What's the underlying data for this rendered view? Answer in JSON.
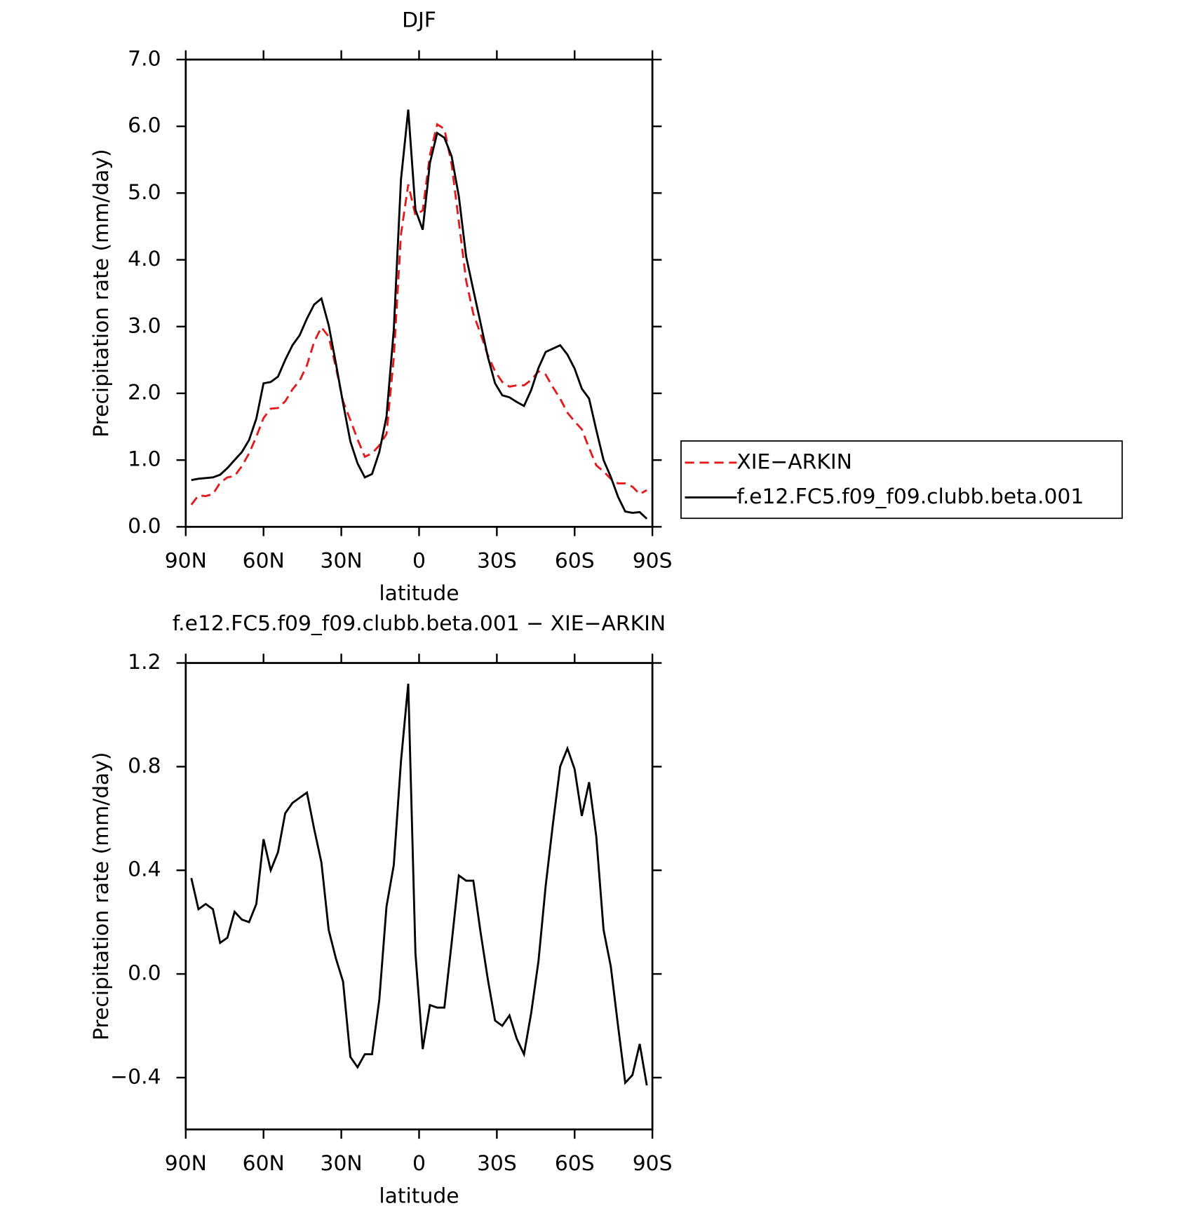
{
  "chart_data": [
    {
      "type": "line",
      "title": "DJF",
      "xlabel": "latitude",
      "ylabel": "Precipitation rate (mm/day)",
      "x": [
        87.86,
        85.1,
        82.31,
        79.53,
        76.74,
        73.95,
        71.16,
        68.37,
        65.58,
        62.79,
        60.0,
        57.21,
        54.42,
        51.63,
        48.84,
        46.05,
        43.26,
        40.47,
        37.67,
        34.88,
        32.09,
        29.3,
        26.51,
        23.72,
        20.93,
        18.14,
        15.35,
        12.56,
        9.77,
        6.98,
        4.19,
        1.4,
        -1.4,
        -4.19,
        -6.98,
        -9.77,
        -12.56,
        -15.35,
        -18.14,
        -20.93,
        -23.72,
        -26.51,
        -29.3,
        -32.09,
        -34.88,
        -37.67,
        -40.47,
        -43.26,
        -46.05,
        -48.84,
        -51.63,
        -54.42,
        -57.21,
        -60.0,
        -62.79,
        -65.58,
        -68.37,
        -71.16,
        -73.95,
        -76.74,
        -79.53,
        -82.31,
        -85.1,
        -87.86
      ],
      "xlim": [
        90,
        -90
      ],
      "xticks": [
        {
          "value": 90,
          "label": "90N"
        },
        {
          "value": 60,
          "label": "60N"
        },
        {
          "value": 30,
          "label": "30N"
        },
        0,
        {
          "value": -30,
          "label": "30S"
        },
        {
          "value": -60,
          "label": "60S"
        },
        {
          "value": -90,
          "label": "90S"
        }
      ],
      "ylim": [
        0,
        7
      ],
      "yticks": [
        {
          "value": 0,
          "label": "0.0"
        },
        {
          "value": 1,
          "label": "1.0"
        },
        {
          "value": 2,
          "label": "2.0"
        },
        {
          "value": 3,
          "label": "3.0"
        },
        {
          "value": 4,
          "label": "4.0"
        },
        {
          "value": 5,
          "label": "5.0"
        },
        {
          "value": 6,
          "label": "6.0"
        },
        {
          "value": 7,
          "label": "7.0"
        }
      ],
      "legend": "right",
      "series": [
        {
          "name": "XIE−ARKIN",
          "color": "#e41a1c",
          "dashed": true,
          "values": [
            0.33,
            0.47,
            0.46,
            0.49,
            0.66,
            0.74,
            0.76,
            0.91,
            1.1,
            1.35,
            1.63,
            1.77,
            1.78,
            1.88,
            2.06,
            2.19,
            2.42,
            2.77,
            2.99,
            2.85,
            2.39,
            1.88,
            1.6,
            1.31,
            1.05,
            1.1,
            1.22,
            1.39,
            2.53,
            4.38,
            5.13,
            4.67,
            4.74,
            5.57,
            6.03,
            5.96,
            5.43,
            4.57,
            3.69,
            3.19,
            2.89,
            2.57,
            2.33,
            2.17,
            2.1,
            2.12,
            2.12,
            2.2,
            2.33,
            2.28,
            2.09,
            1.92,
            1.71,
            1.58,
            1.46,
            1.18,
            0.92,
            0.83,
            0.72,
            0.65,
            0.65,
            0.6,
            0.49,
            0.55
          ]
        },
        {
          "name": "f.e12.FC5.f09_f09.clubb.beta.001",
          "color": "#000000",
          "dashed": false,
          "values": [
            0.7,
            0.72,
            0.73,
            0.74,
            0.78,
            0.88,
            1.0,
            1.12,
            1.3,
            1.62,
            2.15,
            2.17,
            2.25,
            2.5,
            2.72,
            2.87,
            3.12,
            3.33,
            3.42,
            3.02,
            2.45,
            1.85,
            1.28,
            0.95,
            0.74,
            0.79,
            1.12,
            1.65,
            2.95,
            5.2,
            6.25,
            4.75,
            4.45,
            5.45,
            5.9,
            5.83,
            5.55,
            4.95,
            4.05,
            3.55,
            3.05,
            2.55,
            2.15,
            1.97,
            1.94,
            1.87,
            1.81,
            2.05,
            2.38,
            2.62,
            2.67,
            2.72,
            2.58,
            2.37,
            2.07,
            1.92,
            1.45,
            1.0,
            0.75,
            0.45,
            0.23,
            0.21,
            0.22,
            0.12
          ]
        }
      ]
    },
    {
      "type": "line",
      "title": "f.e12.FC5.f09_f09.clubb.beta.001 − XIE−ARKIN",
      "xlabel": "latitude",
      "ylabel": "Precipitation rate (mm/day)",
      "x": [
        87.86,
        85.1,
        82.31,
        79.53,
        76.74,
        73.95,
        71.16,
        68.37,
        65.58,
        62.79,
        60.0,
        57.21,
        54.42,
        51.63,
        48.84,
        46.05,
        43.26,
        40.47,
        37.67,
        34.88,
        32.09,
        29.3,
        26.51,
        23.72,
        20.93,
        18.14,
        15.35,
        12.56,
        9.77,
        6.98,
        4.19,
        1.4,
        -1.4,
        -4.19,
        -6.98,
        -9.77,
        -12.56,
        -15.35,
        -18.14,
        -20.93,
        -23.72,
        -26.51,
        -29.3,
        -32.09,
        -34.88,
        -37.67,
        -40.47,
        -43.26,
        -46.05,
        -48.84,
        -51.63,
        -54.42,
        -57.21,
        -60.0,
        -62.79,
        -65.58,
        -68.37,
        -71.16,
        -73.95,
        -76.74,
        -79.53,
        -82.31,
        -85.1,
        -87.86
      ],
      "xlim": [
        90,
        -90
      ],
      "xticks": [
        {
          "value": 90,
          "label": "90N"
        },
        {
          "value": 60,
          "label": "60N"
        },
        {
          "value": 30,
          "label": "30N"
        },
        0,
        {
          "value": -30,
          "label": "30S"
        },
        {
          "value": -60,
          "label": "60S"
        },
        {
          "value": -90,
          "label": "90S"
        }
      ],
      "ylim": [
        -0.6,
        1.2
      ],
      "yticks": [
        {
          "value": -0.4,
          "label": "−0.4"
        },
        {
          "value": 0,
          "label": "0.0"
        },
        0.4,
        0.8,
        1.2
      ],
      "series": [
        {
          "color": "#000000",
          "dashed": false,
          "values": [
            0.37,
            0.25,
            0.27,
            0.25,
            0.12,
            0.14,
            0.24,
            0.21,
            0.2,
            0.27,
            0.52,
            0.4,
            0.47,
            0.62,
            0.66,
            0.68,
            0.7,
            0.56,
            0.43,
            0.17,
            0.06,
            -0.03,
            -0.32,
            -0.36,
            -0.31,
            -0.31,
            -0.1,
            0.26,
            0.42,
            0.82,
            1.12,
            0.08,
            -0.29,
            -0.12,
            -0.13,
            -0.13,
            0.12,
            0.38,
            0.36,
            0.36,
            0.16,
            -0.02,
            -0.18,
            -0.2,
            -0.16,
            -0.25,
            -0.31,
            -0.15,
            0.05,
            0.34,
            0.58,
            0.8,
            0.87,
            0.79,
            0.61,
            0.74,
            0.53,
            0.17,
            0.03,
            -0.2,
            -0.42,
            -0.39,
            -0.27,
            -0.43
          ]
        }
      ]
    }
  ]
}
